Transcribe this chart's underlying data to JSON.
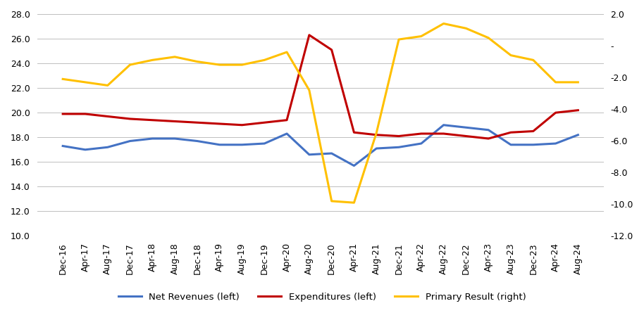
{
  "x_labels": [
    "Dec-16",
    "Apr-17",
    "Aug-17",
    "Dec-17",
    "Apr-18",
    "Aug-18",
    "Dec-18",
    "Apr-19",
    "Aug-19",
    "Dec-19",
    "Apr-20",
    "Aug-20",
    "Dec-20",
    "Apr-21",
    "Aug-21",
    "Dec-21",
    "Apr-22",
    "Aug-22",
    "Dec-22",
    "Apr-23",
    "Aug-23",
    "Dec-23",
    "Apr-24",
    "Aug-24"
  ],
  "net_revenues": [
    17.3,
    17.0,
    17.2,
    17.7,
    17.9,
    17.9,
    17.7,
    17.4,
    17.4,
    17.5,
    18.3,
    16.6,
    16.7,
    15.7,
    17.1,
    17.2,
    17.5,
    19.0,
    18.8,
    18.6,
    17.4,
    17.4,
    17.5,
    18.2
  ],
  "expenditures": [
    19.9,
    19.9,
    19.7,
    19.5,
    19.4,
    19.3,
    19.2,
    19.1,
    19.0,
    19.2,
    19.4,
    26.3,
    25.1,
    18.4,
    18.2,
    18.1,
    18.3,
    18.3,
    18.1,
    17.9,
    18.4,
    18.5,
    20.0,
    20.2
  ],
  "primary_result": [
    -2.1,
    -2.3,
    -2.5,
    -1.2,
    -0.9,
    -0.7,
    -1.0,
    -1.2,
    -1.2,
    -0.9,
    -0.4,
    -2.8,
    -9.8,
    -9.9,
    -5.5,
    0.4,
    0.6,
    1.4,
    1.1,
    0.5,
    -0.6,
    -0.9,
    -2.3,
    -2.3
  ],
  "left_ylim": [
    10.0,
    28.0
  ],
  "right_ylim": [
    -12.0,
    2.0
  ],
  "left_yticks": [
    10.0,
    12.0,
    14.0,
    16.0,
    18.0,
    20.0,
    22.0,
    24.0,
    26.0,
    28.0
  ],
  "right_yticks": [
    -12.0,
    -10.0,
    -8.0,
    -6.0,
    -4.0,
    -2.0,
    0.0,
    2.0
  ],
  "right_yticklabels": [
    "-12.0",
    "-10.0",
    "-8.0",
    "-6.0",
    "-4.0",
    "-2.0",
    "-",
    "2.0"
  ],
  "color_revenues": "#4472C4",
  "color_expenditures": "#C00000",
  "color_primary": "#FFC000",
  "legend_labels": [
    "Net Revenues (left)",
    "Expenditures (left)",
    "Primary Result (right)"
  ],
  "background_color": "#FFFFFF",
  "grid_color": "#BFBFBF",
  "line_width": 2.2,
  "tick_label_fontsize": 9,
  "legend_fontsize": 9.5
}
